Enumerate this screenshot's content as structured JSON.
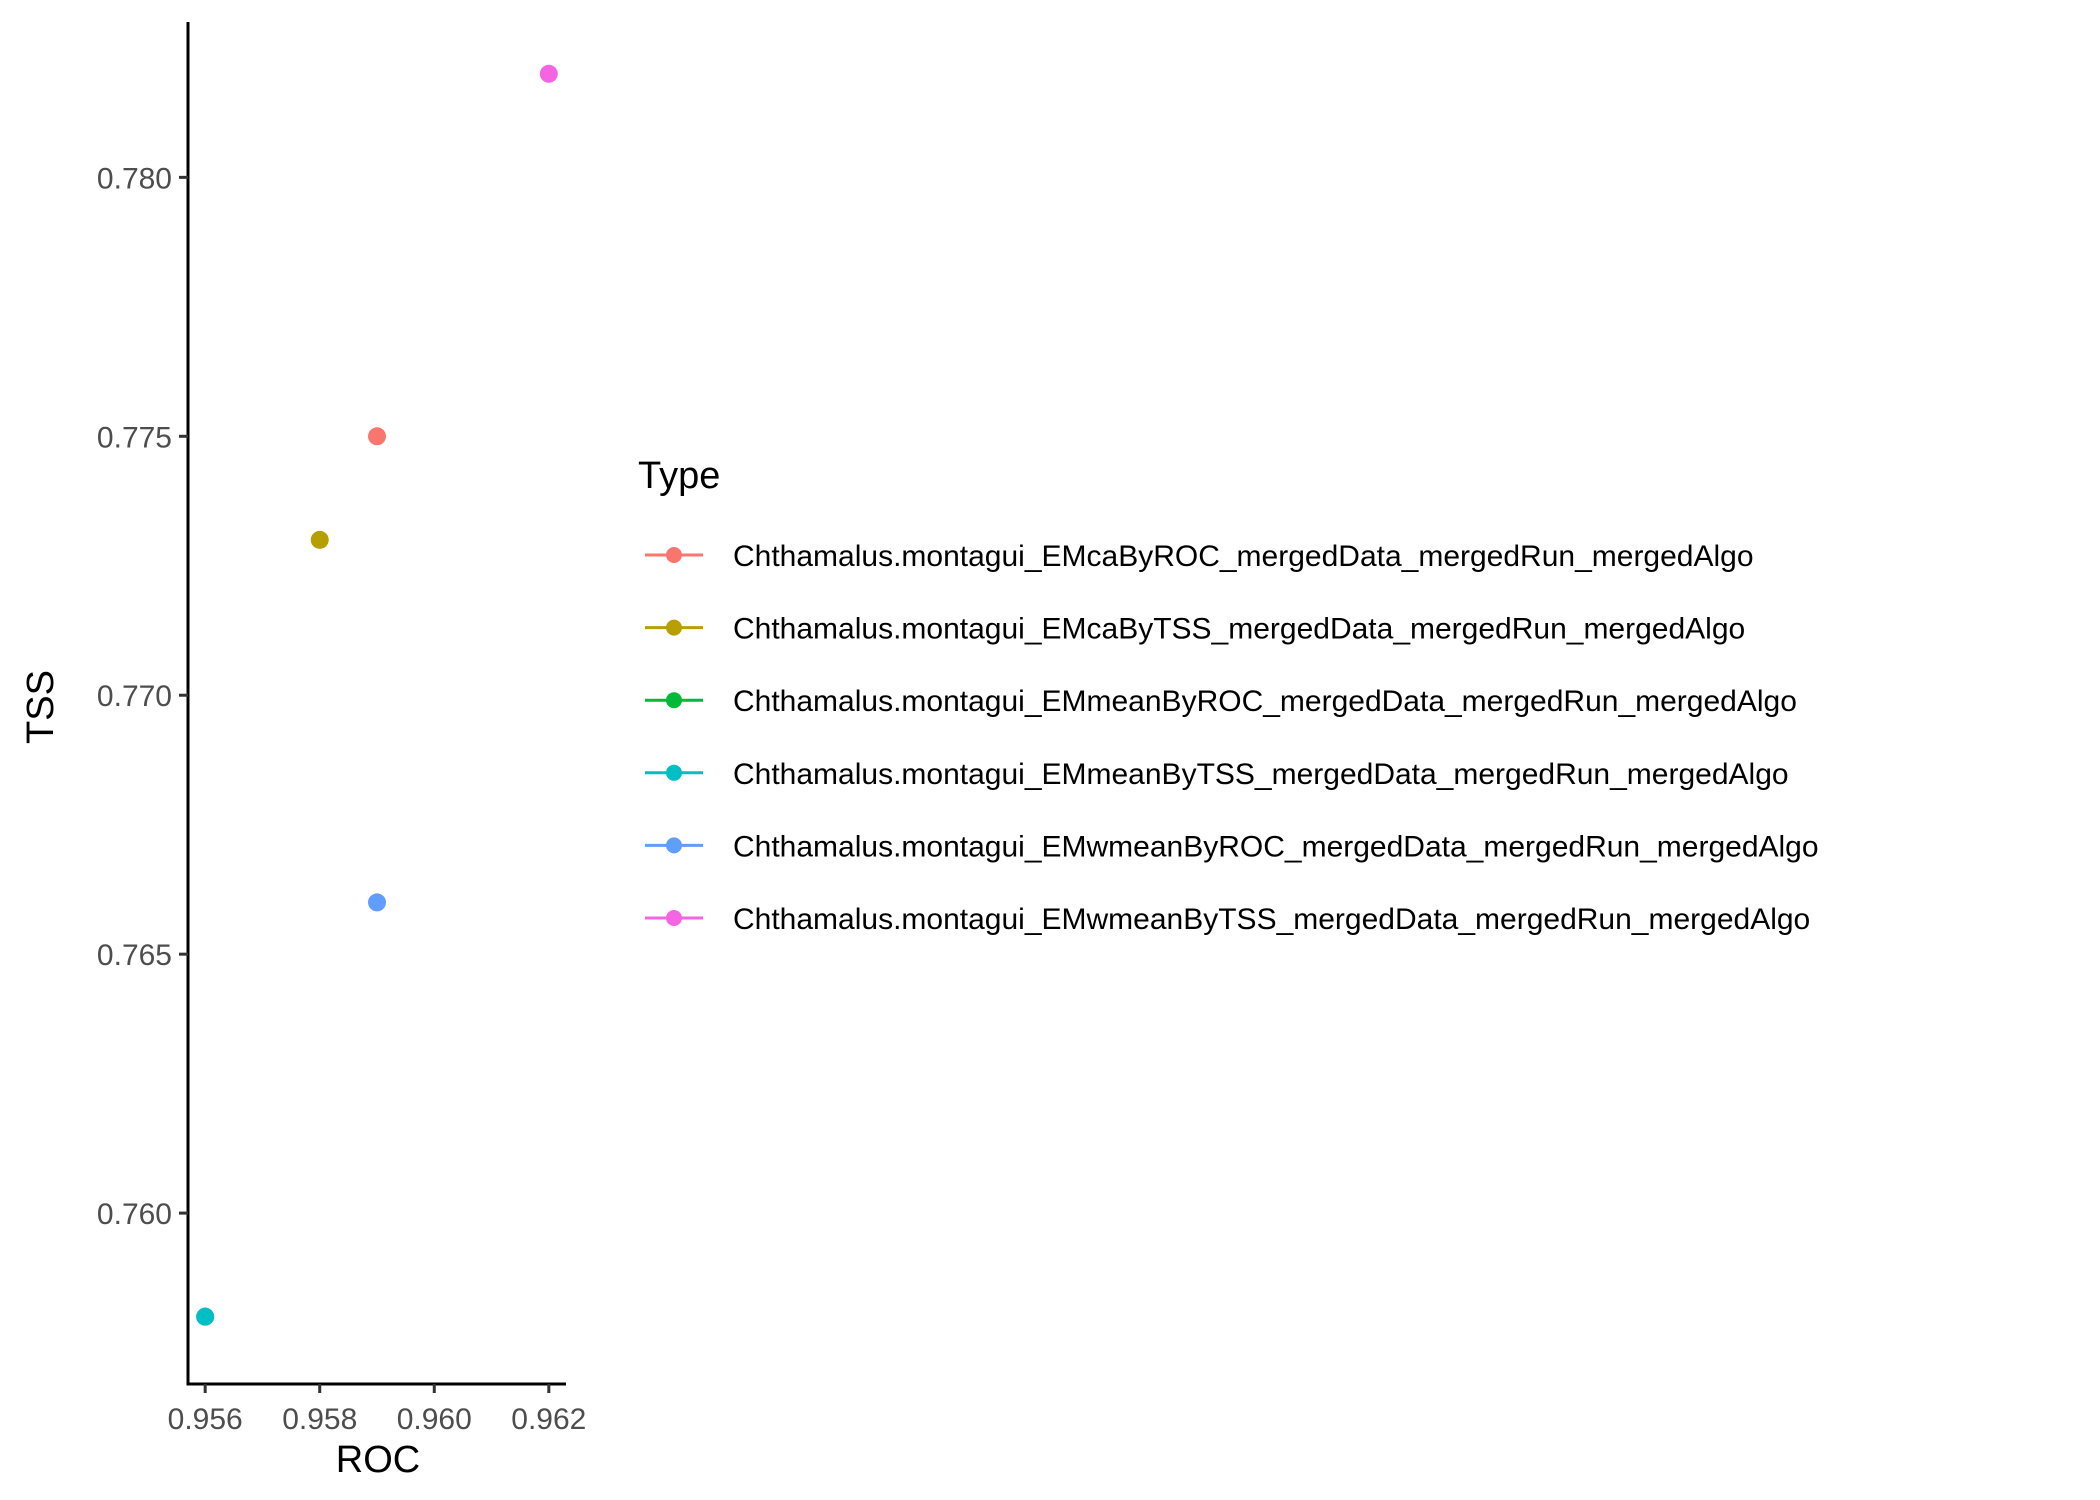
{
  "chart_data": {
    "type": "scatter",
    "xlabel": "ROC",
    "ylabel": "TSS",
    "xlim": [
      0.9557,
      0.9623
    ],
    "ylim": [
      0.7567,
      0.783
    ],
    "xticks": [
      0.956,
      0.958,
      0.96,
      0.962
    ],
    "xtick_labels": [
      "0.956",
      "0.958",
      "0.960",
      "0.962"
    ],
    "yticks": [
      0.76,
      0.765,
      0.77,
      0.775,
      0.78
    ],
    "ytick_labels": [
      "0.760",
      "0.765",
      "0.770",
      "0.775",
      "0.780"
    ],
    "grid": false,
    "legend": {
      "title": "Type",
      "position": "right"
    },
    "series": [
      {
        "name": "Chthamalus.montagui_EMcaByROC_mergedData_mergedRun_mergedAlgo",
        "color": "#F8766D",
        "x": [
          0.959
        ],
        "y": [
          0.775
        ]
      },
      {
        "name": "Chthamalus.montagui_EMcaByTSS_mergedData_mergedRun_mergedAlgo",
        "color": "#B79F00",
        "x": [
          0.958
        ],
        "y": [
          0.773
        ]
      },
      {
        "name": "Chthamalus.montagui_EMmeanByROC_mergedData_mergedRun_mergedAlgo",
        "color": "#00BA38",
        "x": [
          0.956
        ],
        "y": [
          0.758
        ]
      },
      {
        "name": "Chthamalus.montagui_EMmeanByTSS_mergedData_mergedRun_mergedAlgo",
        "color": "#00BFC4",
        "x": [
          0.956
        ],
        "y": [
          0.758
        ]
      },
      {
        "name": "Chthamalus.montagui_EMwmeanByROC_mergedData_mergedRun_mergedAlgo",
        "color": "#619CFF",
        "x": [
          0.959
        ],
        "y": [
          0.766
        ]
      },
      {
        "name": "Chthamalus.montagui_EMwmeanByTSS_mergedData_mergedRun_mergedAlgo",
        "color": "#F564E3",
        "x": [
          0.962
        ],
        "y": [
          0.782
        ]
      }
    ]
  }
}
